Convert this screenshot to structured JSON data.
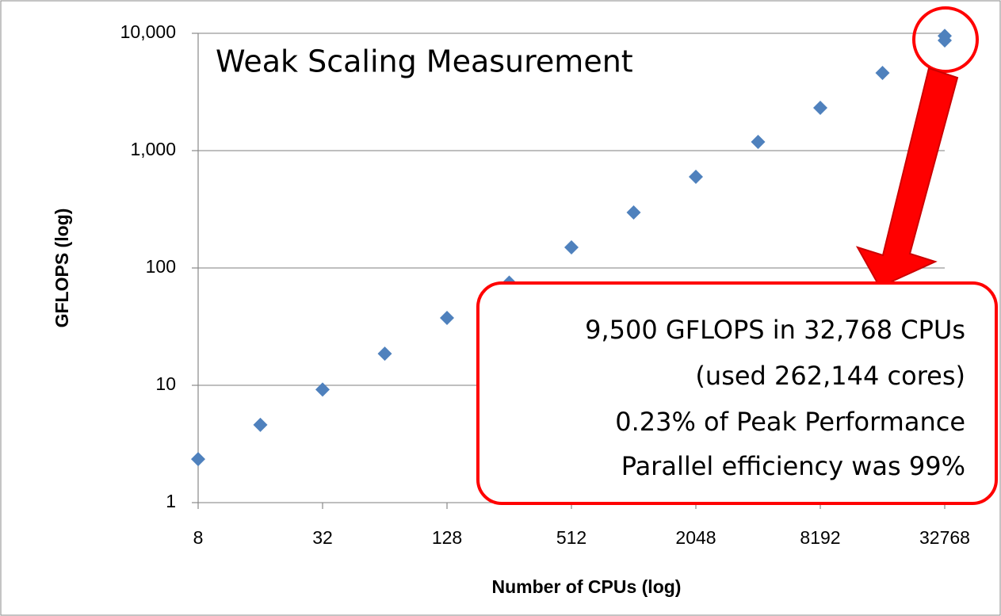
{
  "chart_data": {
    "type": "scatter",
    "title": "Weak Scaling Measurement",
    "x_label": "Number of CPUs  (log)",
    "y_label": "GFLOPS  (log)",
    "xscale": "log",
    "yscale": "log",
    "x": [
      8,
      16,
      32,
      64,
      128,
      256,
      512,
      1024,
      2048,
      4096,
      8192,
      16384,
      32768,
      32768
    ],
    "values": [
      2.35,
      4.6,
      9.2,
      18.6,
      37.5,
      75,
      150,
      297,
      598,
      1187,
      2317,
      4592,
      9500,
      8700
    ],
    "color": "#4f81bd",
    "xlim": [
      8,
      32768
    ],
    "xticks": [
      8,
      32,
      128,
      512,
      2048,
      8192,
      32768
    ],
    "ylim": [
      1,
      10000
    ],
    "yticks": [
      1,
      10,
      100,
      {
        "value": 1000,
        "label": "1,000"
      },
      {
        "value": 10000,
        "label": "10,000"
      }
    ],
    "grid": true,
    "annotation": [
      "9,500 GFLOPS in 32,768 CPUs",
      "(used 262,144 cores)",
      "0.23% of Peak Performance",
      "Parallel efficiency was 99%"
    ]
  }
}
